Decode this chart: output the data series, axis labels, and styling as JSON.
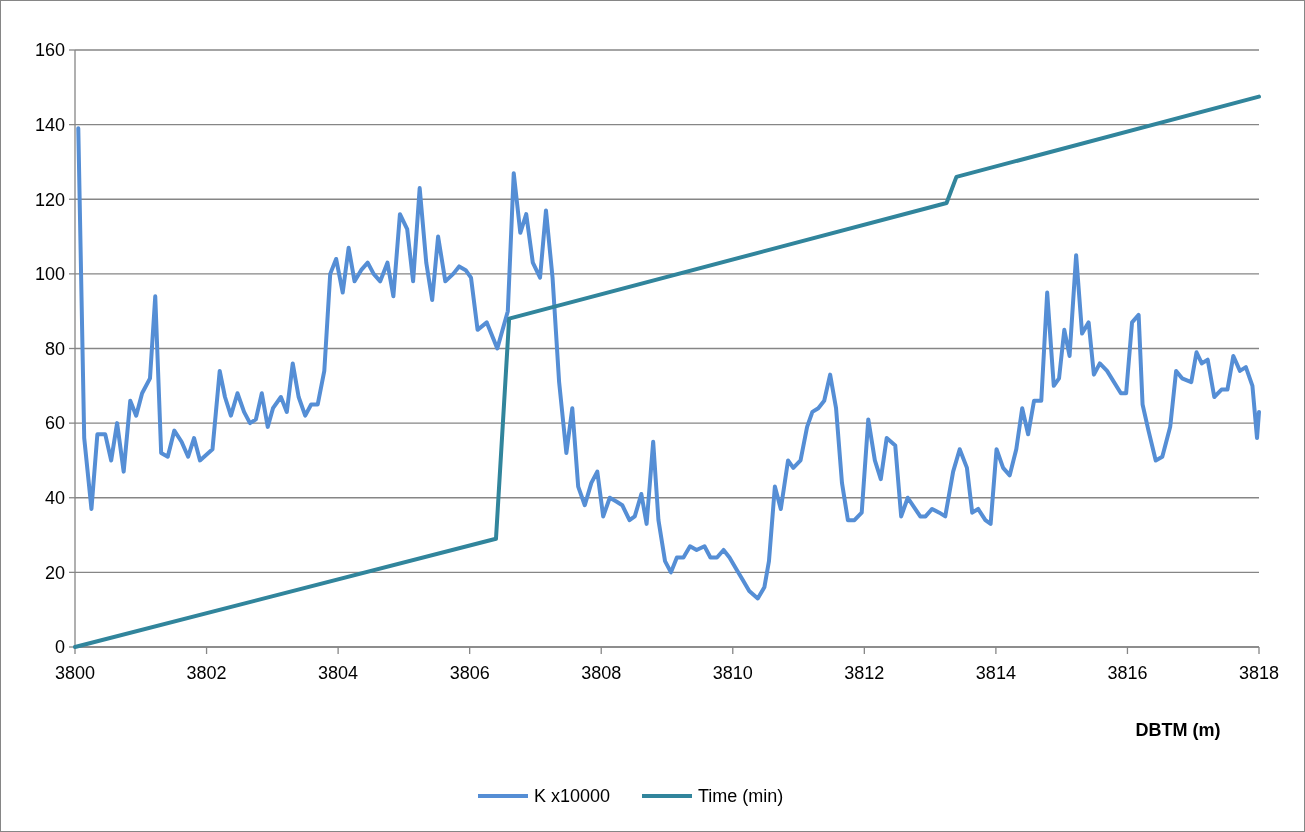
{
  "chart_data": {
    "type": "line",
    "xlabel": "DBTM (m)",
    "xlim": [
      3800,
      3818
    ],
    "xticks": [
      3800,
      3802,
      3804,
      3806,
      3808,
      3810,
      3812,
      3814,
      3816,
      3818
    ],
    "ylim": [
      0,
      160
    ],
    "yticks": [
      0,
      20,
      40,
      60,
      80,
      100,
      120,
      140,
      160
    ],
    "grid": "y",
    "legend": "bottom",
    "marker": "none",
    "line_style": "solid",
    "series": [
      {
        "name": "K x10000",
        "color": "#558ed5",
        "x": [
          3800.05,
          3800.14,
          3800.25,
          3800.34,
          3800.46,
          3800.55,
          3800.64,
          3800.74,
          3800.84,
          3800.93,
          3801.02,
          3801.14,
          3801.22,
          3801.31,
          3801.41,
          3801.51,
          3801.62,
          3801.72,
          3801.81,
          3801.9,
          3802.09,
          3802.2,
          3802.28,
          3802.37,
          3802.47,
          3802.57,
          3802.66,
          3802.75,
          3802.84,
          3802.93,
          3803.01,
          3803.13,
          3803.22,
          3803.31,
          3803.4,
          3803.5,
          3803.59,
          3803.69,
          3803.79,
          3803.88,
          3803.97,
          3804.07,
          3804.16,
          3804.25,
          3804.35,
          3804.45,
          3804.54,
          3804.64,
          3804.75,
          3804.84,
          3804.94,
          3805.05,
          3805.14,
          3805.24,
          3805.34,
          3805.43,
          3805.52,
          3805.63,
          3805.75,
          3805.84,
          3805.94,
          3806.02,
          3806.12,
          3806.26,
          3806.42,
          3806.58,
          3806.67,
          3806.77,
          3806.86,
          3806.96,
          3807.07,
          3807.16,
          3807.26,
          3807.36,
          3807.47,
          3807.56,
          3807.65,
          3807.75,
          3807.85,
          3807.94,
          3808.03,
          3808.13,
          3808.23,
          3808.32,
          3808.43,
          3808.51,
          3808.61,
          3808.69,
          3808.79,
          3808.87,
          3808.97,
          3809.06,
          3809.15,
          3809.25,
          3809.35,
          3809.45,
          3809.57,
          3809.66,
          3809.76,
          3809.86,
          3809.95,
          3810.05,
          3810.15,
          3810.25,
          3810.38,
          3810.48,
          3810.55,
          3810.64,
          3810.73,
          3810.84,
          3810.92,
          3811.03,
          3811.13,
          3811.21,
          3811.3,
          3811.39,
          3811.48,
          3811.57,
          3811.66,
          3811.75,
          3811.85,
          3811.96,
          3812.06,
          3812.16,
          3812.25,
          3812.34,
          3812.47,
          3812.56,
          3812.66,
          3812.85,
          3812.93,
          3813.03,
          3813.14,
          3813.23,
          3813.35,
          3813.45,
          3813.56,
          3813.64,
          3813.73,
          3813.84,
          3813.92,
          3814.01,
          3814.11,
          3814.21,
          3814.31,
          3814.4,
          3814.49,
          3814.58,
          3814.69,
          3814.78,
          3814.88,
          3814.96,
          3815.04,
          3815.12,
          3815.22,
          3815.31,
          3815.41,
          3815.49,
          3815.58,
          3815.69,
          3815.9,
          3815.98,
          3816.07,
          3816.17,
          3816.23,
          3816.32,
          3816.43,
          3816.53,
          3816.65,
          3816.74,
          3816.83,
          3816.97,
          3817.05,
          3817.13,
          3817.22,
          3817.32,
          3817.43,
          3817.52,
          3817.61,
          3817.71,
          3817.8,
          3817.9,
          3817.97,
          3818
        ],
        "values": [
          139,
          56,
          37,
          57,
          57,
          50,
          60,
          47,
          66,
          62,
          68,
          72,
          94,
          52,
          51,
          58,
          55,
          51,
          56,
          50,
          53,
          74,
          67,
          62,
          68,
          63,
          60,
          61,
          68,
          59,
          64,
          67,
          63,
          76,
          67,
          62,
          65,
          65,
          74,
          100,
          104,
          95,
          107,
          98,
          101,
          103,
          100,
          98,
          103,
          94,
          116,
          112,
          98,
          123,
          103,
          93,
          110,
          98,
          100,
          102,
          101,
          99,
          85,
          87,
          80,
          90,
          127,
          111,
          116,
          103,
          99,
          117,
          99,
          71,
          52,
          64,
          43,
          38,
          44,
          47,
          35,
          40,
          39,
          38,
          34,
          35,
          41,
          33,
          55,
          34,
          23,
          20,
          24,
          24,
          27,
          26,
          27,
          24,
          24,
          26,
          24,
          21,
          18,
          15,
          13,
          16,
          23,
          43,
          37,
          50,
          48,
          50,
          59,
          63,
          64,
          66,
          73,
          64,
          44,
          34,
          34,
          36,
          61,
          50,
          45,
          56,
          54,
          35,
          40,
          35,
          35,
          37,
          36,
          35,
          47,
          53,
          48,
          36,
          37,
          34,
          33,
          53,
          48,
          46,
          53,
          64,
          57,
          66,
          66,
          95,
          70,
          72,
          85,
          78,
          105,
          84,
          87,
          73,
          76,
          74,
          68,
          68,
          87,
          89,
          65,
          58,
          50,
          51,
          59,
          74,
          72,
          71,
          79,
          76,
          77,
          67,
          69,
          69,
          78,
          74,
          75,
          70,
          56,
          63
        ]
      },
      {
        "name": "Time (min)",
        "color": "#31859c",
        "x": [
          3800,
          3806.4,
          3806.6,
          3813.25,
          3813.4,
          3818
        ],
        "values": [
          0,
          29,
          88,
          119,
          126,
          147.5
        ]
      }
    ]
  }
}
